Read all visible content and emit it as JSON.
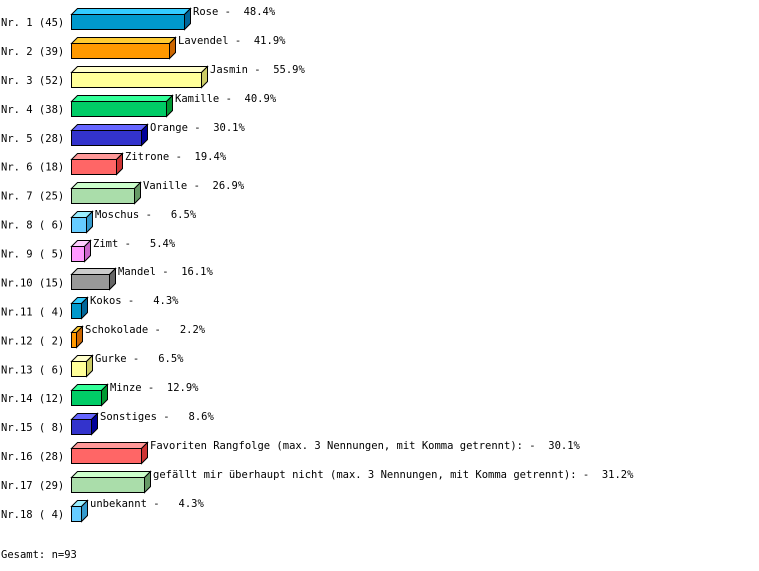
{
  "chart_data": {
    "type": "bar",
    "orientation": "horizontal",
    "style": "3d",
    "grid": false,
    "xlim": [
      0,
      100
    ],
    "categories": [
      "Nr. 1",
      "Nr. 2",
      "Nr. 3",
      "Nr. 4",
      "Nr. 5",
      "Nr. 6",
      "Nr. 7",
      "Nr. 8",
      "Nr. 9",
      "Nr.10",
      "Nr.11",
      "Nr.12",
      "Nr.13",
      "Nr.14",
      "Nr.15",
      "Nr.16",
      "Nr.17",
      "Nr.18"
    ],
    "counts": [
      45,
      39,
      52,
      38,
      28,
      18,
      25,
      6,
      5,
      15,
      4,
      2,
      6,
      12,
      8,
      28,
      29,
      4
    ],
    "labels": [
      "Rose",
      "Lavendel",
      "Jasmin",
      "Kamille",
      "Orange",
      "Zitrone",
      "Vanille",
      "Moschus",
      "Zimt",
      "Mandel",
      "Kokos",
      "Schokolade",
      "Gurke",
      "Minze",
      "Sonstiges",
      "Favoriten Rangfolge (max. 3 Nennungen, mit Komma getrennt):",
      "gefällt mir überhaupt nicht (max. 3 Nennungen, mit Komma getrennt):",
      "unbekannt"
    ],
    "values": [
      48.4,
      41.9,
      55.9,
      40.9,
      30.1,
      19.4,
      26.9,
      6.5,
      5.4,
      16.1,
      4.3,
      2.2,
      6.5,
      12.9,
      8.6,
      30.1,
      31.2,
      4.3
    ],
    "unit": "%",
    "colors": [
      {
        "front": "#0099cc",
        "top": "#33ccff",
        "side": "#006699"
      },
      {
        "front": "#ff9900",
        "top": "#ffcc33",
        "side": "#cc6600"
      },
      {
        "front": "#ffff99",
        "top": "#ffffcc",
        "side": "#cccc66"
      },
      {
        "front": "#00cc66",
        "top": "#33ff99",
        "side": "#009933"
      },
      {
        "front": "#3333cc",
        "top": "#6666ff",
        "side": "#000099"
      },
      {
        "front": "#ff6666",
        "top": "#ff9999",
        "side": "#cc3333"
      },
      {
        "front": "#aaddaa",
        "top": "#ccffcc",
        "side": "#669966"
      },
      {
        "front": "#66ccff",
        "top": "#99eeff",
        "side": "#3399cc"
      },
      {
        "front": "#ff99ff",
        "top": "#ffccff",
        "side": "#cc66cc"
      },
      {
        "front": "#999999",
        "top": "#cccccc",
        "side": "#666666"
      }
    ],
    "footer": "Gesamt: n=93"
  }
}
